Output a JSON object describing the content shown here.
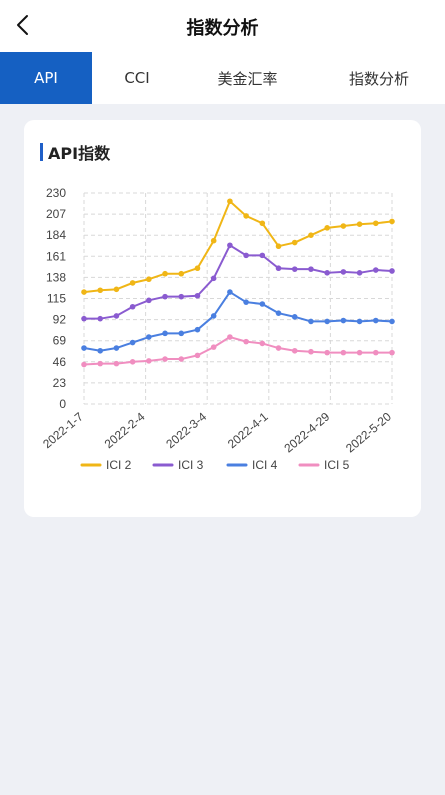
{
  "header": {
    "title": "指数分析"
  },
  "tabs": [
    {
      "label": "API",
      "active": true
    },
    {
      "label": "CCI",
      "active": false
    },
    {
      "label": "美金汇率",
      "active": false
    },
    {
      "label": "指数分析",
      "active": false
    }
  ],
  "colors": {
    "accent": "#1560c2",
    "background": "#eef0f5"
  },
  "card": {
    "title": "API指数"
  },
  "chart_data": {
    "type": "line",
    "title": "API指数",
    "ylim": [
      0,
      230
    ],
    "yticks": [
      0,
      23,
      46,
      69,
      92,
      115,
      138,
      161,
      184,
      207,
      230
    ],
    "x_tick_labels": [
      "2022-1-7",
      "2022-2-4",
      "2022-3-4",
      "2022-4-1",
      "2022-4-29",
      "2022-5-20"
    ],
    "grid": true,
    "legend_position": "bottom",
    "series": [
      {
        "name": "ICI 2",
        "color": "#f0b616",
        "values": [
          122,
          124,
          125,
          132,
          136,
          142,
          142,
          148,
          178,
          221,
          205,
          197,
          172,
          176,
          184,
          192,
          194,
          196,
          197,
          199
        ]
      },
      {
        "name": "ICI 3",
        "color": "#8a5bd0",
        "values": [
          93,
          93,
          96,
          106,
          113,
          117,
          117,
          118,
          137,
          173,
          162,
          162,
          148,
          147,
          147,
          143,
          144,
          143,
          146,
          145
        ]
      },
      {
        "name": "ICI 4",
        "color": "#4a7fe0",
        "values": [
          61,
          58,
          61,
          67,
          73,
          77,
          77,
          81,
          96,
          122,
          111,
          109,
          99,
          95,
          90,
          90,
          91,
          90,
          91,
          90
        ]
      },
      {
        "name": "ICI 5",
        "color": "#f08ec0",
        "values": [
          43,
          44,
          44,
          46,
          47,
          49,
          49,
          53,
          62,
          73,
          68,
          66,
          61,
          58,
          57,
          56,
          56,
          56,
          56,
          56
        ]
      }
    ]
  }
}
